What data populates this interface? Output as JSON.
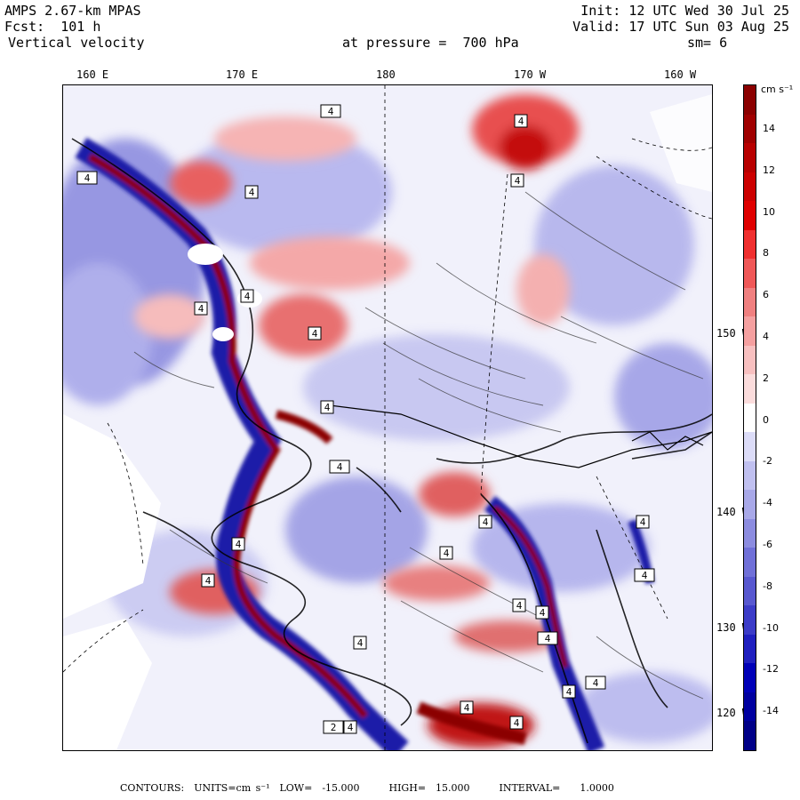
{
  "header": {
    "model": "AMPS 2.67-km MPAS",
    "forecast": "Fcst:  101 h",
    "field": "Vertical velocity",
    "init": "Init: 12 UTC Wed 30 Jul 25",
    "valid": "Valid: 17 UTC Sun 03 Aug 25",
    "level": "at pressure =  700 hPa",
    "smoothing": "sm= 6"
  },
  "lon_labels": [
    "160 E",
    "170 E",
    "180",
    "170 W",
    "160 W"
  ],
  "lat_labels": [
    "150 W",
    "140 W",
    "130 W",
    "120 W"
  ],
  "colorbar": {
    "units": "cm s⁻¹",
    "ticks": [
      "14",
      "12",
      "10",
      "8",
      "6",
      "4",
      "2",
      "0",
      "-2",
      "-4",
      "-6",
      "-8",
      "-10",
      "-12",
      "-14"
    ],
    "colors": [
      "#8b0000",
      "#a00000",
      "#b80000",
      "#cc0000",
      "#e00000",
      "#f03030",
      "#f05858",
      "#f08080",
      "#f5a0a0",
      "#f8c0c0",
      "#fbdcdc",
      "#ffffff",
      "#dcdcf8",
      "#c0c0f0",
      "#a8a8e8",
      "#8c8ce0",
      "#7070d8",
      "#5858d0",
      "#3c3cc8",
      "#2020c0",
      "#0000b8",
      "#0000a0",
      "#000088"
    ]
  },
  "footer": {
    "text": "CONTOURS:  UNITS=cm s⁻¹  LOW=  -15.000      HIGH=  15.000      INTERVAL=    1.0000"
  },
  "map_labels": [
    "4",
    "4",
    "4",
    "4",
    "4",
    "4",
    "4",
    "4",
    "4",
    "4",
    "4",
    "4",
    "4",
    "4",
    "4",
    "4",
    "4",
    "4",
    "4",
    "4",
    "4",
    "4",
    "4",
    "4",
    "4",
    "2"
  ]
}
